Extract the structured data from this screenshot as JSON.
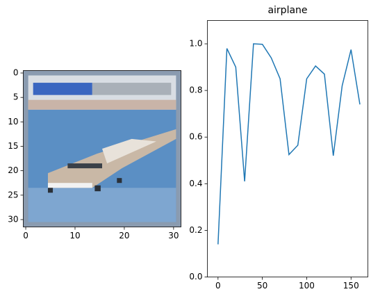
{
  "chart_data": [
    {
      "type": "image",
      "xlim": [
        -0.5,
        31.5
      ],
      "ylim": [
        31.5,
        -0.5
      ],
      "xticks": [
        0,
        10,
        20,
        30
      ],
      "yticks": [
        0,
        5,
        10,
        15,
        20,
        25,
        30
      ]
    },
    {
      "type": "line",
      "title": "airplane",
      "x": [
        0,
        10,
        20,
        30,
        40,
        50,
        60,
        70,
        80,
        90,
        100,
        110,
        120,
        130,
        140,
        150,
        160
      ],
      "values": [
        0.14,
        0.98,
        0.9,
        0.41,
        1.0,
        0.998,
        0.94,
        0.85,
        0.525,
        0.565,
        0.85,
        0.905,
        0.87,
        0.52,
        0.82,
        0.975,
        0.74
      ],
      "color": "#1f77b4",
      "xlim": [
        -12,
        169
      ],
      "ylim": [
        0,
        1.1
      ],
      "xticks": [
        0,
        50,
        100,
        150
      ],
      "yticks": [
        {
          "value": 0,
          "label": "0.0"
        },
        0.2,
        0.4,
        0.6,
        0.8,
        {
          "value": 1,
          "label": "1.0"
        }
      ]
    }
  ]
}
